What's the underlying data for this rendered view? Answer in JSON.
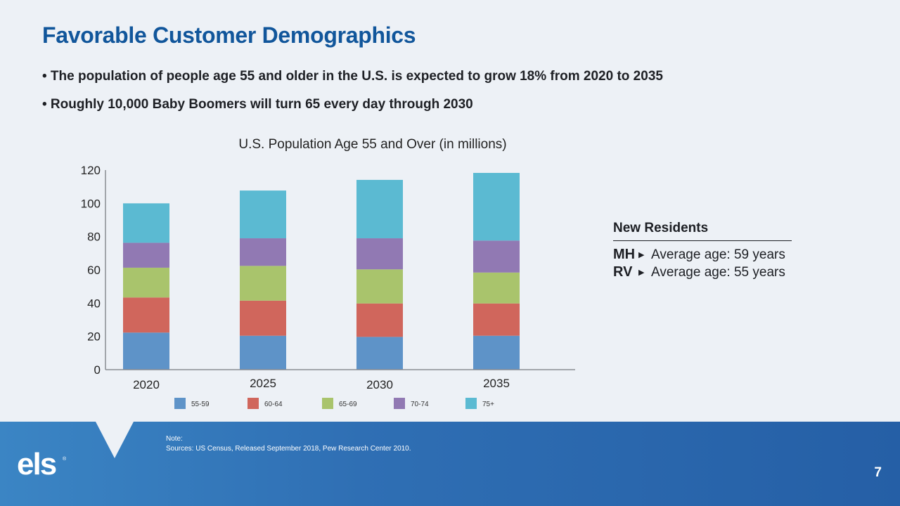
{
  "header": {
    "title": "Favorable Customer Demographics",
    "bullets": [
      "• The population of people age 55 and older in the U.S. is expected to grow 18% from 2020 to 2035",
      "• Roughly 10,000 Baby Boomers will turn 65 every day through 2030"
    ]
  },
  "chart_data": {
    "type": "bar",
    "stacked": true,
    "title": "U.S. Population Age 55 and Over (in millions)",
    "xlabel": "",
    "ylabel": "",
    "categories": [
      "2020",
      "2025",
      "2030",
      "2035"
    ],
    "ylim": [
      0,
      120
    ],
    "yticks": [
      0,
      20,
      40,
      60,
      80,
      100,
      120
    ],
    "grid": false,
    "legend_position": "bottom",
    "series": [
      {
        "name": "55-59",
        "color": "#5e93c8",
        "values": [
          22.3,
          20.4,
          19.7,
          20.4
        ]
      },
      {
        "name": "60-64",
        "color": "#d0665c",
        "values": [
          21.1,
          21.1,
          20.1,
          19.4
        ]
      },
      {
        "name": "65-69",
        "color": "#a9c46c",
        "values": [
          17.9,
          20.9,
          20.5,
          18.6
        ]
      },
      {
        "name": "70-74",
        "color": "#9179b3",
        "values": [
          15.0,
          16.6,
          18.7,
          19.2
        ]
      },
      {
        "name": "75+",
        "color": "#5bbad2",
        "values": [
          23.7,
          28.7,
          35.1,
          40.7
        ]
      }
    ]
  },
  "residents": {
    "title": "New Residents",
    "rows": [
      {
        "code": "MH",
        "text": "Average age: 59 years"
      },
      {
        "code": "RV",
        "text": "Average age: 55 years"
      }
    ]
  },
  "footer": {
    "logo": "els",
    "logo_mark": "®",
    "note_label": "Note:",
    "sources": "Sources: US Census, Released September 2018, Pew Research Center 2010.",
    "page_number": "7"
  },
  "colors": {
    "title": "#11569b",
    "footer": "#2f6fb4",
    "background": "#edf1f6"
  }
}
